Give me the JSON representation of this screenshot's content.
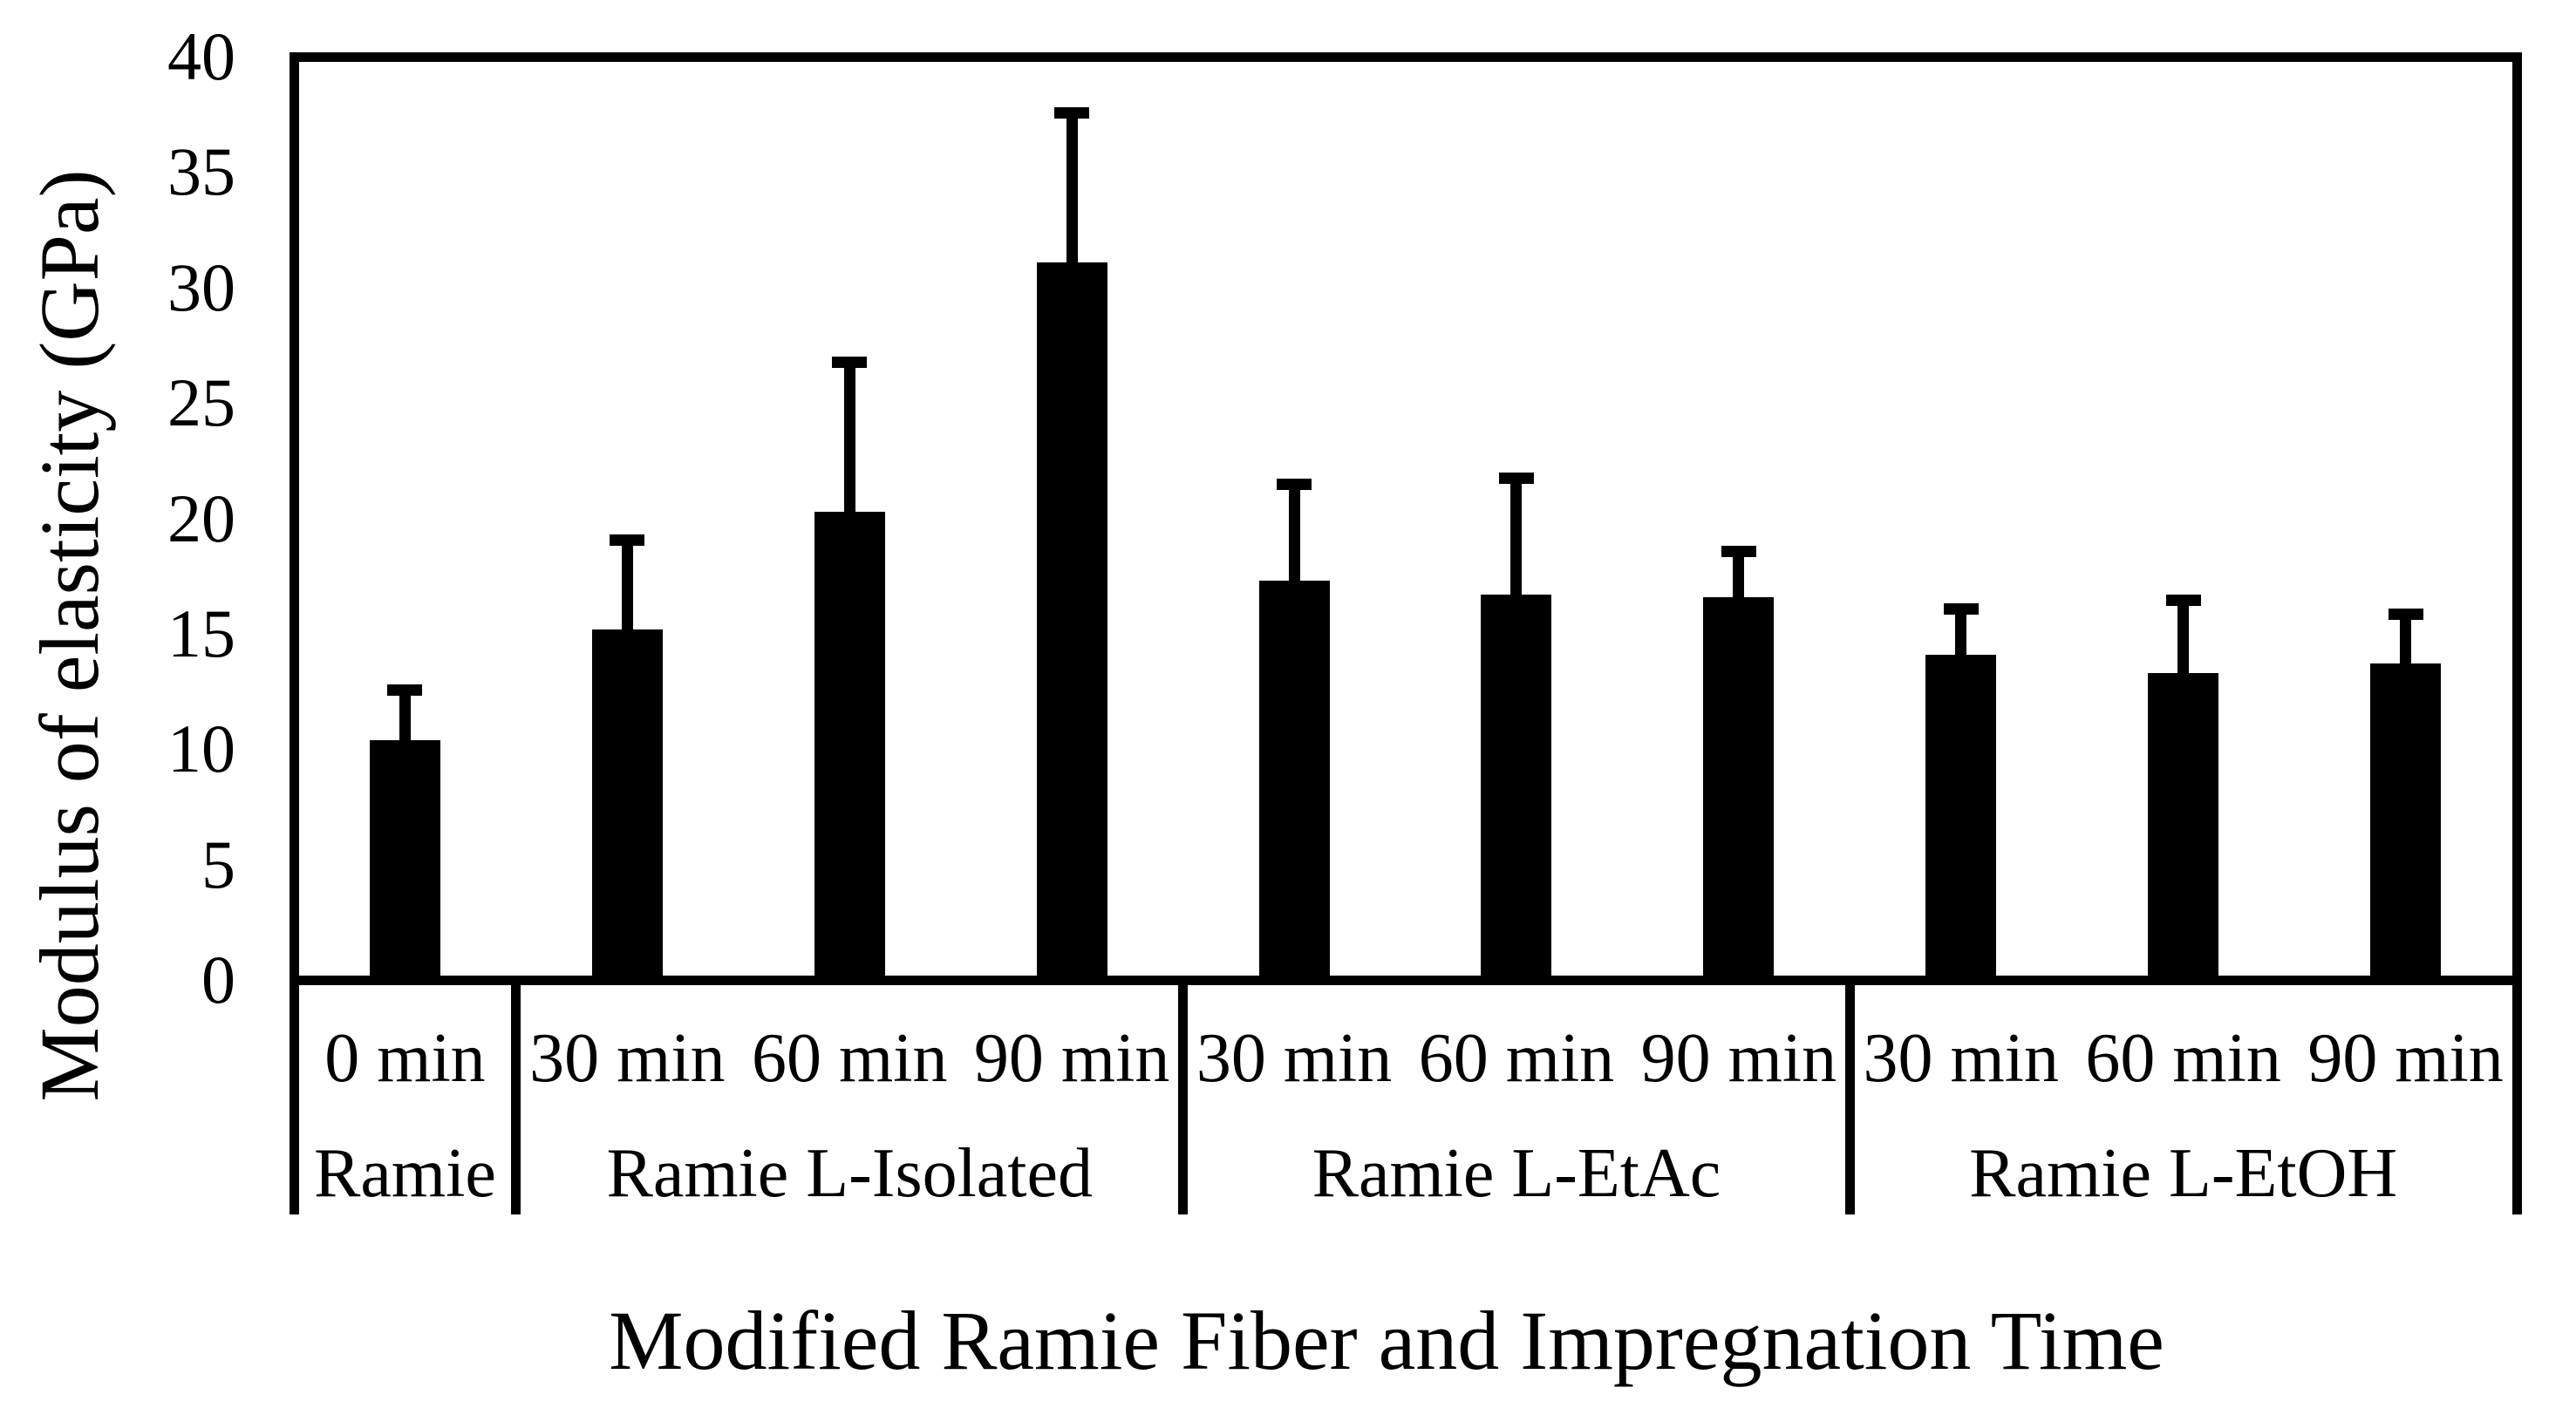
{
  "chart_data": {
    "type": "bar",
    "title": "",
    "xlabel": "Modified Ramie Fiber and Impregnation Time",
    "ylabel": "Modulus of elasticity (GPa)",
    "ylim": [
      0,
      40
    ],
    "yticks": [
      0,
      5,
      10,
      15,
      20,
      25,
      30,
      35,
      40
    ],
    "grid": false,
    "legend": "none",
    "bar_color": "#000000",
    "background_color": "#ffffff",
    "error_bars": "plus_direction_only",
    "groups": [
      {
        "label": "Ramie",
        "bars": [
          {
            "time": "0 min",
            "value": 10.4,
            "error_top": 12.8
          }
        ]
      },
      {
        "label": "Ramie L-Isolated",
        "bars": [
          {
            "time": "30 min",
            "value": 15.2,
            "error_top": 19.3
          },
          {
            "time": "60 min",
            "value": 20.3,
            "error_top": 27.0
          },
          {
            "time": "90 min",
            "value": 31.1,
            "error_top": 37.8
          }
        ]
      },
      {
        "label": "Ramie L-EtAc",
        "bars": [
          {
            "time": "30 min",
            "value": 17.3,
            "error_top": 21.7
          },
          {
            "time": "60 min",
            "value": 16.7,
            "error_top": 22.0
          },
          {
            "time": "90 min",
            "value": 16.6,
            "error_top": 18.8
          }
        ]
      },
      {
        "label": "Ramie L-EtOH",
        "bars": [
          {
            "time": "30 min",
            "value": 14.1,
            "error_top": 16.3
          },
          {
            "time": "60 min",
            "value": 13.3,
            "error_top": 16.7
          },
          {
            "time": "90 min",
            "value": 13.7,
            "error_top": 16.1
          }
        ]
      }
    ]
  }
}
